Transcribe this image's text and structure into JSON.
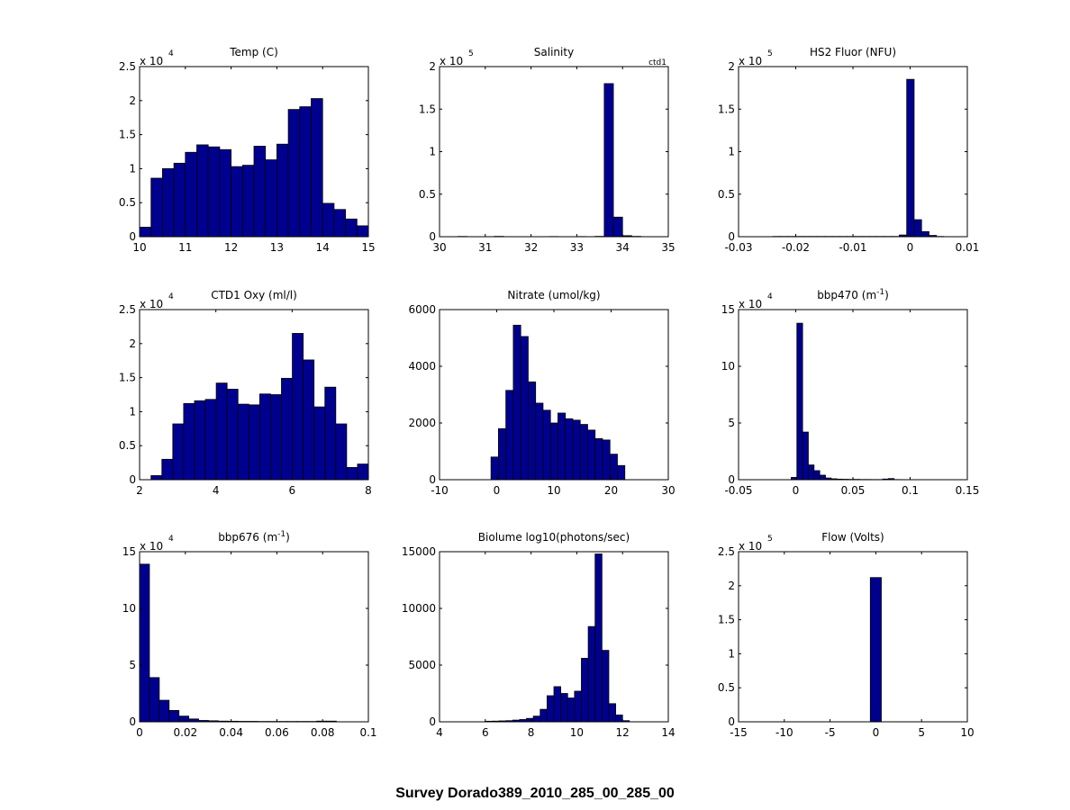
{
  "figure": {
    "suptitle": "Survey Dorado389_2010_285_00_285_00",
    "bar_color": "#00008f",
    "edge_color": "#000000"
  },
  "chart_data": [
    {
      "type": "bar",
      "title": "Temp (C)",
      "multiplier": "x 10",
      "multiplier_exp": "4",
      "xlim": [
        10,
        15
      ],
      "ylim": [
        0,
        25000
      ],
      "xticks": [
        "10",
        "11",
        "12",
        "13",
        "14",
        "15"
      ],
      "yticks": [
        "0",
        "0.5",
        "1",
        "1.5",
        "2",
        "2.5"
      ],
      "bin_start": 10.0,
      "bin_width": 0.25,
      "values": [
        1400,
        8600,
        10000,
        10800,
        12400,
        13500,
        13200,
        12800,
        10300,
        10500,
        13300,
        11300,
        13600,
        18700,
        19100,
        20300,
        4900,
        4000,
        2600,
        1600
      ]
    },
    {
      "type": "bar",
      "title": "Salinity",
      "corner_label": "ctd1",
      "multiplier": "x 10",
      "multiplier_exp": "5",
      "xlim": [
        30,
        35
      ],
      "ylim": [
        0,
        200000
      ],
      "xticks": [
        "30",
        "31",
        "32",
        "33",
        "34",
        "35"
      ],
      "yticks": [
        "0",
        "0.5",
        "1",
        "1.5",
        "2"
      ],
      "bin_start": 30.0,
      "bin_width": 0.2,
      "values": [
        0,
        0,
        300,
        0,
        0,
        0,
        400,
        0,
        0,
        0,
        0,
        0,
        200,
        0,
        0,
        200,
        0,
        400,
        180000,
        23000,
        1200,
        400,
        0,
        0,
        0
      ]
    },
    {
      "type": "bar",
      "title": "HS2 Fluor (NFU)",
      "multiplier": "x 10",
      "multiplier_exp": "5",
      "xlim": [
        -0.03,
        0.01
      ],
      "ylim": [
        0,
        200000
      ],
      "xticks": [
        "-0.03",
        "-0.02",
        "-0.01",
        "0",
        "0.01"
      ],
      "yticks": [
        "0",
        "0.5",
        "1",
        "1.5",
        "2"
      ],
      "bin_start": -0.024,
      "bin_width": 0.0013,
      "values": [
        300,
        300,
        300,
        300,
        300,
        300,
        300,
        300,
        300,
        300,
        300,
        300,
        300,
        300,
        300,
        300,
        300,
        2000,
        185000,
        20000,
        6000,
        1500,
        300
      ]
    },
    {
      "type": "bar",
      "title": "CTD1 Oxy (ml/l)",
      "multiplier": "x 10",
      "multiplier_exp": "4",
      "xlim": [
        2,
        8
      ],
      "ylim": [
        0,
        25000
      ],
      "xticks": [
        "2",
        "4",
        "6",
        "8"
      ],
      "yticks": [
        "0",
        "0.5",
        "1",
        "1.5",
        "2",
        "2.5"
      ],
      "bin_start": 2.3,
      "bin_width": 0.285,
      "values": [
        600,
        3000,
        8200,
        11200,
        11600,
        11800,
        14200,
        13300,
        11100,
        11000,
        12600,
        12500,
        14900,
        21500,
        17600,
        10700,
        13600,
        8200,
        1800,
        2300
      ]
    },
    {
      "type": "bar",
      "title": "Nitrate (umol/kg)",
      "xlim": [
        -10,
        30
      ],
      "ylim": [
        0,
        6000
      ],
      "xticks": [
        "-10",
        "0",
        "10",
        "20",
        "30"
      ],
      "yticks": [
        "0",
        "2000",
        "4000",
        "6000"
      ],
      "bin_start": -1.0,
      "bin_width": 1.3,
      "values": [
        800,
        1800,
        3150,
        5450,
        5050,
        3450,
        2700,
        2450,
        2000,
        2350,
        2150,
        2100,
        1950,
        1750,
        1450,
        1400,
        900,
        500,
        0
      ]
    },
    {
      "type": "bar",
      "title": "bbp470 (m",
      "title_sup": "-1",
      "title_end": ")",
      "multiplier": "x 10",
      "multiplier_exp": "4",
      "xlim": [
        -0.05,
        0.15
      ],
      "ylim": [
        0,
        150000
      ],
      "xticks": [
        "-0.05",
        "0",
        "0.05",
        "0.1",
        "0.15"
      ],
      "yticks": [
        "0",
        "5",
        "10",
        "15"
      ],
      "bin_start": -0.004,
      "bin_width": 0.005,
      "values": [
        2000,
        138000,
        42000,
        13000,
        8000,
        4000,
        1500,
        800,
        500,
        400,
        300,
        300,
        200,
        200,
        150,
        150,
        600,
        1000,
        150,
        100
      ]
    },
    {
      "type": "bar",
      "title": "bbp676 (m",
      "title_sup": "-1",
      "title_end": ")",
      "multiplier": "x 10",
      "multiplier_exp": "4",
      "xlim": [
        0,
        0.1
      ],
      "ylim": [
        0,
        150000
      ],
      "xticks": [
        "0",
        "0.02",
        "0.04",
        "0.06",
        "0.08",
        "0.1"
      ],
      "yticks": [
        "0",
        "5",
        "10",
        "15"
      ],
      "bin_start": 0.0,
      "bin_width": 0.0043,
      "values": [
        139000,
        39000,
        19000,
        10000,
        5000,
        2500,
        1200,
        900,
        600,
        500,
        400,
        400,
        300,
        300,
        300,
        300,
        300,
        300,
        600,
        600
      ]
    },
    {
      "type": "bar",
      "title": "Biolume log10(photons/sec)",
      "xlim": [
        4,
        14
      ],
      "ylim": [
        0,
        15000
      ],
      "xticks": [
        "4",
        "6",
        "8",
        "10",
        "12",
        "14"
      ],
      "yticks": [
        "0",
        "5000",
        "10000",
        "15000"
      ],
      "bin_start": 6.0,
      "bin_width": 0.3,
      "values": [
        50,
        60,
        80,
        100,
        150,
        200,
        300,
        500,
        1100,
        2300,
        3100,
        2500,
        2100,
        2700,
        5600,
        8400,
        14800,
        6300,
        1600,
        600,
        100
      ]
    },
    {
      "type": "bar",
      "title": "Flow (Volts)",
      "multiplier": "x 10",
      "multiplier_exp": "5",
      "xlim": [
        -15,
        10
      ],
      "ylim": [
        0,
        250000
      ],
      "xticks": [
        "-15",
        "-10",
        "-5",
        "0",
        "5",
        "10"
      ],
      "yticks": [
        "0",
        "0.5",
        "1",
        "1.5",
        "2",
        "2.5"
      ],
      "bin_start": -0.6,
      "bin_width": 1.2,
      "values": [
        212000
      ]
    }
  ]
}
